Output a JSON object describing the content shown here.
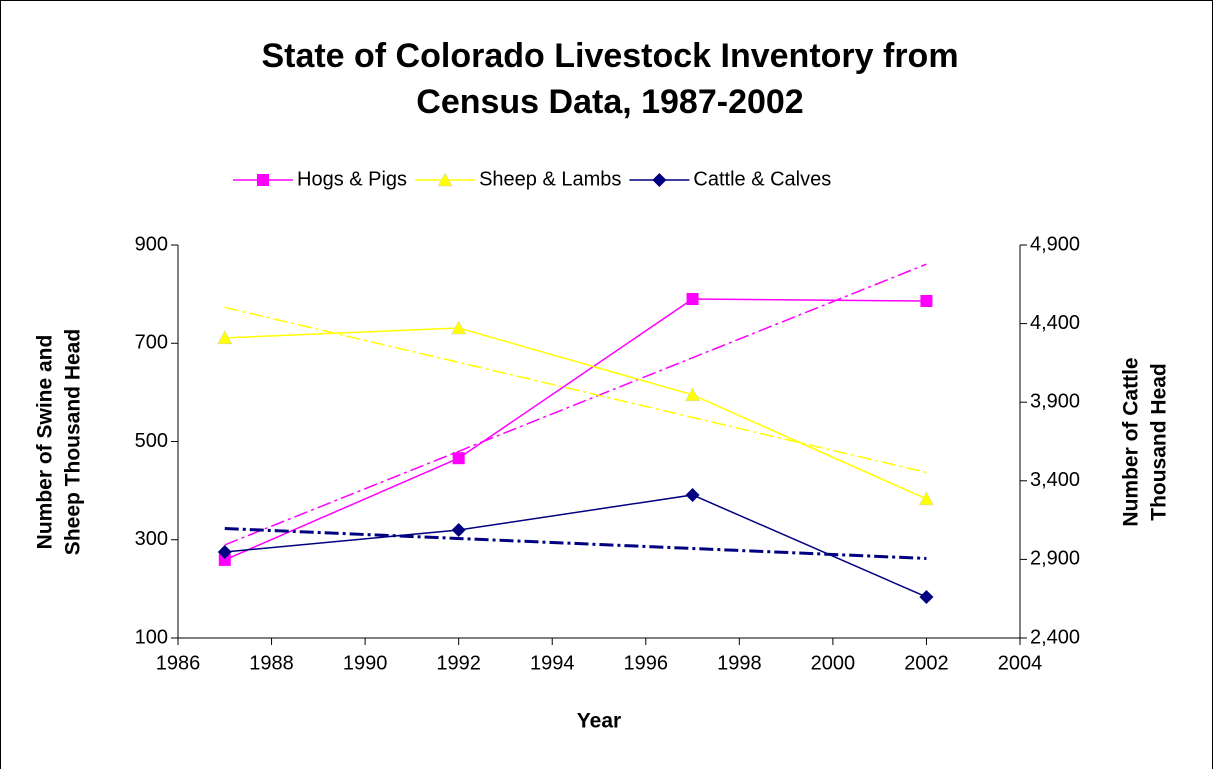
{
  "chart_data": {
    "type": "line",
    "title": [
      "State of Colorado Livestock Inventory from",
      "Census Data, 1987-2002"
    ],
    "x_label": "Year",
    "y_label": [
      "Number of Swine and",
      "Sheep Thousand Head"
    ],
    "y2_label": [
      "Number of Cattle",
      "Thousand Head"
    ],
    "x": [
      1987,
      1992,
      1997,
      2002
    ],
    "series": [
      {
        "name": "Hogs & Pigs",
        "color": "#ff00ff",
        "marker": "square",
        "values": [
          259,
          466,
          790,
          786
        ]
      },
      {
        "name": "Sheep & Lambs",
        "color": "#ffff00",
        "marker": "triangle",
        "values": [
          711,
          731,
          595,
          383
        ]
      },
      {
        "name": "Cattle & Calves",
        "color": "#000080",
        "marker": "diamond",
        "axis": "y2",
        "values": [
          2947,
          3087,
          3310,
          2661
        ]
      }
    ],
    "trendline": true,
    "xlim": [
      1986,
      2004
    ],
    "xticks": [
      1986,
      1988,
      1990,
      1992,
      1994,
      1996,
      1998,
      2000,
      2002,
      2004
    ],
    "ylim": [
      100,
      900
    ],
    "yticks": [
      100,
      300,
      500,
      700,
      900
    ],
    "y2lim": [
      2400,
      4900
    ],
    "y2ticks": [
      {
        "value": 2400,
        "label": "2,400"
      },
      {
        "value": 2900,
        "label": "2,900"
      },
      {
        "value": 3400,
        "label": "3,400"
      },
      {
        "value": 3900,
        "label": "3,900"
      },
      {
        "value": 4400,
        "label": "4,400"
      },
      {
        "value": 4900,
        "label": "4,900"
      }
    ],
    "legend": "top"
  }
}
